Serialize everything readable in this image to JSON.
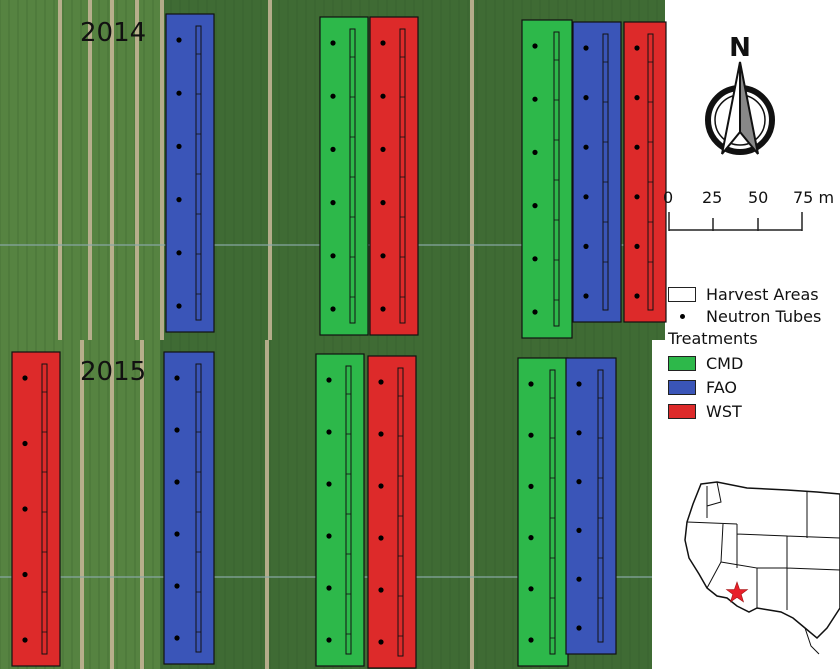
{
  "panels": [
    {
      "year": "2014",
      "plots": [
        {
          "treatment": "FAO",
          "tubes": 6
        },
        {
          "treatment": "CMD",
          "tubes": 6
        },
        {
          "treatment": "WST",
          "tubes": 6
        },
        {
          "treatment": "CMD",
          "tubes": 6
        },
        {
          "treatment": "FAO",
          "tubes": 6
        },
        {
          "treatment": "WST",
          "tubes": 6
        }
      ]
    },
    {
      "year": "2015",
      "plots": [
        {
          "treatment": "WST",
          "tubes": 5
        },
        {
          "treatment": "FAO",
          "tubes": 6
        },
        {
          "treatment": "CMD",
          "tubes": 6
        },
        {
          "treatment": "WST",
          "tubes": 6
        },
        {
          "treatment": "CMD",
          "tubes": 6
        },
        {
          "treatment": "FAO",
          "tubes": 6
        }
      ]
    }
  ],
  "north_label": "N",
  "scale": {
    "ticks": [
      "0",
      "25",
      "50",
      "75 m"
    ]
  },
  "legend": {
    "harvest_areas": "Harvest Areas",
    "neutron_tubes": "Neutron Tubes",
    "treatments_title": "Treatments",
    "treatments": [
      {
        "name": "CMD",
        "color": "#2db84a"
      },
      {
        "name": "FAO",
        "color": "#3a55b8"
      },
      {
        "name": "WST",
        "color": "#dd2a2a"
      }
    ]
  },
  "colors": {
    "field": "#3f6b34",
    "field_light": "#5d8a45",
    "road": "#c9b79a",
    "star": "#e8202a"
  }
}
